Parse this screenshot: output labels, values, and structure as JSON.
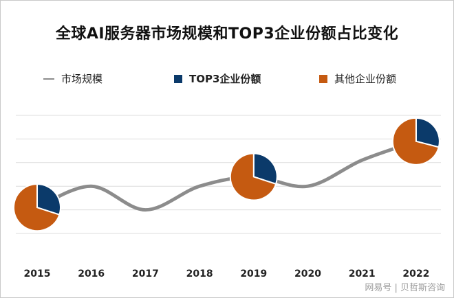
{
  "chart_data": {
    "type": "line",
    "title": "全球AI服务器市场规模和TOP3企业份额占比变化",
    "categories": [
      "2015",
      "2016",
      "2017",
      "2018",
      "2019",
      "2020",
      "2021",
      "2022"
    ],
    "series": [
      {
        "name": "市场规模",
        "values": [
          1.1,
          2.0,
          1.0,
          2.0,
          2.4,
          2.0,
          3.1,
          3.9
        ],
        "color": "#8c8c8c"
      }
    ],
    "pies": [
      {
        "year": "2015",
        "slices": [
          {
            "name": "TOP3企业份额",
            "value": 30
          },
          {
            "name": "其他企业份额",
            "value": 70
          }
        ]
      },
      {
        "year": "2019",
        "slices": [
          {
            "name": "TOP3企业份额",
            "value": 30
          },
          {
            "name": "其他企业份额",
            "value": 70
          }
        ]
      },
      {
        "year": "2022",
        "slices": [
          {
            "name": "TOP3企业份额",
            "value": 29
          },
          {
            "name": "其他企业份额",
            "value": 71
          }
        ]
      }
    ],
    "legend": {
      "position": "top",
      "items": [
        {
          "label": "市场规模",
          "color": "#8c8c8c"
        },
        {
          "label": "TOP3企业份额",
          "color": "#0b3a6a"
        },
        {
          "label": "其他企业份额",
          "color": "#c55a11"
        }
      ]
    },
    "ylim": [
      0,
      5
    ],
    "yaxis_labels": false,
    "grid": true
  },
  "watermark": "网易号 | 贝哲斯咨询"
}
